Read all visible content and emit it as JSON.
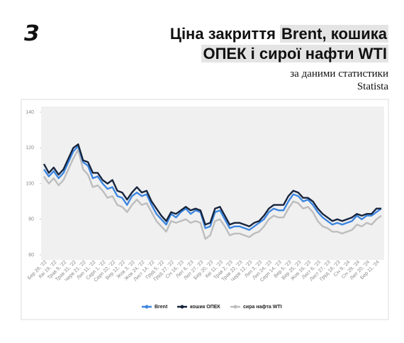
{
  "logo": "З",
  "header": {
    "title_parts": [
      "Ціна закриття ",
      "Brent, кошика",
      "ОПЕК і сирої нафти WTI"
    ],
    "subtitle_lines": [
      "за даними статистики",
      "Statista"
    ]
  },
  "chart_data": {
    "type": "line",
    "categories": [
      "Бер 28, '22",
      null,
      "Кві 19, '22",
      null,
      "Трав 9, '22",
      null,
      "Трав 31, '22",
      null,
      "Черв 21, '22",
      null,
      "Лип 11, '22",
      null,
      "Серп 1, '22",
      null,
      "Серп 22, '22",
      null,
      "Вер 12, '22",
      null,
      "Жов 3, '22",
      null,
      "Жов 24, '22",
      null,
      "Лист 14, '22",
      null,
      "Груд 5, '22",
      null,
      "Груд 27, '22",
      null,
      "Січ 16, '23",
      null,
      "Лют 6, '23",
      null,
      "Лют 27, '23",
      null,
      "Бер 20, '23",
      null,
      "Кві 11, '23",
      null,
      "Трав 2, '23",
      null,
      "Трав 22, '23",
      null,
      "Черв 12, '23",
      null,
      "Лип 3, '23",
      null,
      "Лип 24, '23",
      null,
      "Серп 14, '23",
      null,
      "Вер 5, '23",
      null,
      "Вер 25, '23",
      null,
      "Жов 16, '23",
      null,
      "Лист 6, '23",
      null,
      "Лист 27, '23",
      null,
      "Груд 18, '23",
      null,
      "Січ 9, '24",
      null,
      "Січ 29, '24",
      null,
      "Лют 20, '24",
      null,
      "Бер 11, '24",
      null
    ],
    "series": [
      {
        "name": "сира нафта WTI",
        "color": "#bdbdbd",
        "values": [
          104,
          100,
          103,
          99,
          102,
          108,
          114,
          119,
          108,
          105,
          98,
          99,
          96,
          92,
          93,
          88,
          87,
          84,
          88,
          91,
          88,
          89,
          84,
          79,
          76,
          73,
          79,
          78,
          79,
          80,
          78,
          79,
          78,
          69,
          71,
          79,
          80,
          76,
          71,
          72,
          72,
          71,
          70,
          72,
          73,
          76,
          80,
          82,
          81,
          81,
          86,
          90,
          89,
          86,
          87,
          84,
          79,
          76,
          75,
          73,
          73,
          72,
          73,
          74,
          77,
          76,
          78,
          77,
          80,
          82
        ]
      },
      {
        "name": "Brent",
        "color": "#3d86e0",
        "values": [
          108,
          104,
          107,
          103,
          106,
          112,
          118,
          121,
          112,
          110,
          103,
          104,
          100,
          97,
          98,
          93,
          92,
          88,
          93,
          95,
          93,
          94,
          88,
          83,
          80,
          77,
          83,
          81,
          84,
          86,
          83,
          85,
          84,
          75,
          76,
          84,
          85,
          80,
          75,
          76,
          76,
          75,
          74,
          76,
          78,
          80,
          84,
          86,
          85,
          85,
          90,
          94,
          93,
          90,
          91,
          88,
          84,
          81,
          79,
          77,
          78,
          77,
          78,
          79,
          82,
          80,
          82,
          82,
          84,
          86
        ]
      },
      {
        "name": "кошик ОПЕК",
        "color": "#16243d",
        "values": [
          111,
          106,
          109,
          105,
          108,
          114,
          120,
          122,
          113,
          112,
          106,
          106,
          102,
          100,
          102,
          96,
          95,
          91,
          95,
          98,
          95,
          96,
          90,
          86,
          82,
          79,
          84,
          83,
          85,
          87,
          85,
          86,
          85,
          77,
          78,
          86,
          87,
          82,
          77,
          78,
          78,
          77,
          76,
          78,
          79,
          82,
          86,
          88,
          88,
          88,
          93,
          96,
          95,
          92,
          92,
          90,
          86,
          83,
          81,
          79,
          80,
          79,
          80,
          81,
          83,
          82,
          83,
          83,
          86,
          86
        ]
      }
    ],
    "legend_order": [
      1,
      2,
      0
    ],
    "ylim": [
      60,
      140
    ],
    "yticks": [
      60,
      80,
      100,
      120,
      140
    ],
    "grid": false
  }
}
